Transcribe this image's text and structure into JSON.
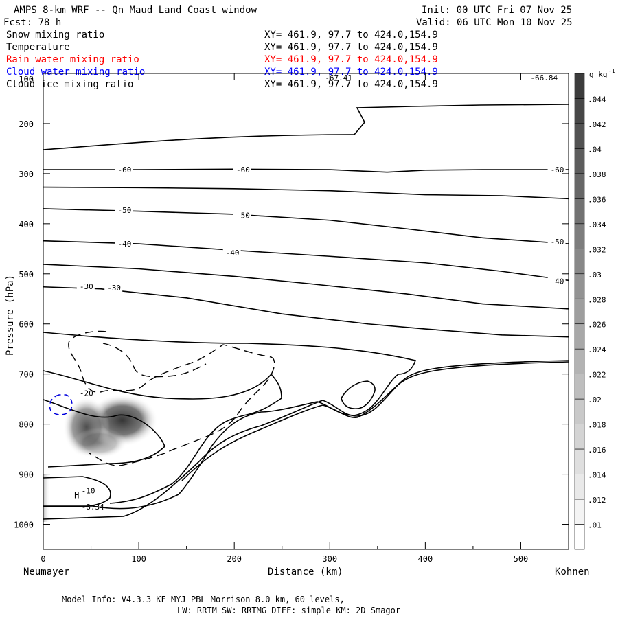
{
  "header": {
    "title": "AMPS 8-km WRF -- Qn Maud Land Coast window",
    "init": "Init: 00 UTC Fri 07 Nov 25",
    "fcst": "Fcst:   78 h",
    "valid": "Valid: 06 UTC Mon 10 Nov 25"
  },
  "fields": [
    {
      "name": "Snow mixing ratio",
      "xy": "XY= 461.9, 97.7 to 424.0,154.9",
      "color": "#000000"
    },
    {
      "name": "Temperature",
      "xy": "XY= 461.9, 97.7 to 424.0,154.9",
      "color": "#000000"
    },
    {
      "name": "Rain water mixing ratio",
      "xy": "XY= 461.9, 97.7 to 424.0,154.9",
      "color": "#ff0000"
    },
    {
      "name": "Cloud water mixing ratio",
      "xy": "XY= 461.9, 97.7 to 424.0,154.9",
      "color": "#0000ff"
    },
    {
      "name": "Cloud ice mixing ratio",
      "xy": "XY= 461.9, 97.7 to 424.0,154.9",
      "color": "#000000"
    }
  ],
  "footer": {
    "line1": "Model Info: V4.3.3   KF      MYJ PBL  Morrison             8.0 km,  60 levels,",
    "line2": "LW: RRTM SW: RRTMG   DIFF: simple KM: 2D Smagor"
  },
  "chart_data": {
    "type": "contour",
    "title": "AMPS 8-km WRF -- Qn Maud Land Coast window",
    "xlabel": "Distance (km)",
    "ylabel": "Pressure (hPa)",
    "xlim": [
      0,
      550
    ],
    "ylim": [
      1050,
      100
    ],
    "x_ticks": [
      0,
      100,
      200,
      300,
      400,
      500
    ],
    "y_ticks": [
      200,
      300,
      400,
      500,
      600,
      700,
      800,
      900,
      1000
    ],
    "left_label": "Neumayer",
    "right_label": "Kohnen",
    "colorbar": {
      "unit": "g kg",
      "unit_exp": "-1",
      "levels": [
        ".044",
        ".042",
        ".04",
        ".038",
        ".036",
        ".034",
        ".032",
        ".03",
        ".028",
        ".026",
        ".024",
        ".022",
        ".02",
        ".018",
        ".016",
        ".014",
        ".012",
        ".01"
      ]
    },
    "annotations": [
      {
        "text": "-67.41",
        "x": 295,
        "p": 108
      },
      {
        "text": "-66.84",
        "x": 510,
        "p": 108
      },
      {
        "text": "H",
        "x": 35,
        "p": 948
      },
      {
        "text": "-8.34",
        "x": 40,
        "p": 965
      }
    ],
    "isotherms": [
      {
        "level": "-60",
        "labels": [
          {
            "x": 78,
            "p": 292
          },
          {
            "x": 202,
            "p": 292
          },
          {
            "x": 531,
            "p": 292
          }
        ],
        "points": [
          [
            0,
            292
          ],
          [
            100,
            292
          ],
          [
            200,
            291
          ],
          [
            300,
            292
          ],
          [
            360,
            297
          ],
          [
            400,
            293
          ],
          [
            460,
            292
          ],
          [
            550,
            292
          ]
        ]
      },
      {
        "level": "",
        "labels": [],
        "points": [
          [
            0,
            327
          ],
          [
            100,
            328
          ],
          [
            200,
            330
          ],
          [
            300,
            334
          ],
          [
            350,
            338
          ],
          [
            400,
            342
          ],
          [
            480,
            344
          ],
          [
            550,
            350
          ]
        ]
      },
      {
        "level": "-50",
        "labels": [
          {
            "x": 78,
            "p": 373
          },
          {
            "x": 202,
            "p": 383
          },
          {
            "x": 531,
            "p": 436
          }
        ],
        "points": [
          [
            0,
            370
          ],
          [
            100,
            375
          ],
          [
            200,
            381
          ],
          [
            300,
            393
          ],
          [
            380,
            410
          ],
          [
            460,
            428
          ],
          [
            550,
            440
          ]
        ]
      },
      {
        "level": "-40",
        "labels": [
          {
            "x": 78,
            "p": 440
          },
          {
            "x": 191,
            "p": 458
          },
          {
            "x": 531,
            "p": 515
          }
        ],
        "points": [
          [
            0,
            434
          ],
          [
            100,
            440
          ],
          [
            200,
            453
          ],
          [
            300,
            465
          ],
          [
            400,
            478
          ],
          [
            480,
            495
          ],
          [
            550,
            513
          ]
        ]
      },
      {
        "level": "",
        "labels": [],
        "points": [
          [
            0,
            481
          ],
          [
            100,
            490
          ],
          [
            200,
            505
          ],
          [
            280,
            520
          ],
          [
            380,
            540
          ],
          [
            460,
            560
          ],
          [
            550,
            570
          ]
        ]
      },
      {
        "level": "-30",
        "labels": [
          {
            "x": 38,
            "p": 525
          },
          {
            "x": 67,
            "p": 528
          }
        ],
        "points": [
          [
            0,
            526
          ],
          [
            60,
            530
          ],
          [
            150,
            548
          ],
          [
            250,
            580
          ],
          [
            340,
            600
          ],
          [
            400,
            610
          ],
          [
            480,
            622
          ],
          [
            550,
            626
          ]
        ]
      }
    ]
  }
}
